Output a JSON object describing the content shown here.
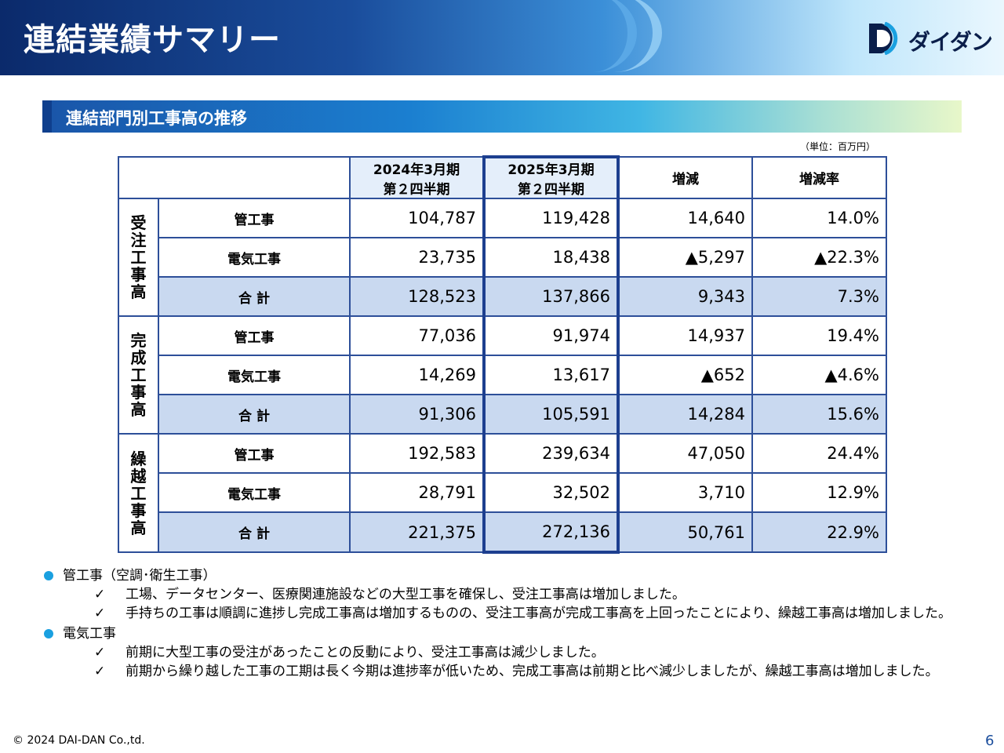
{
  "header": {
    "title": "連結業績サマリー",
    "logo_text": "ダイダン"
  },
  "section": {
    "title": "連結部門別工事高の推移",
    "unit_note": "（単位：百万円）"
  },
  "table": {
    "columns": {
      "prev_line1": "2024年3月期",
      "prev_line2": "第２四半期",
      "cur_line1": "2025年3月期",
      "cur_line2": "第２四半期",
      "change": "増減",
      "change_rate": "増減率"
    },
    "groups": [
      {
        "label_chars": [
          "受",
          "注",
          "工",
          "事",
          "高"
        ],
        "rows": [
          {
            "label": "管工事",
            "prev": "104,787",
            "cur": "119,428",
            "change": "14,640",
            "rate": "14.0%"
          },
          {
            "label": "電気工事",
            "prev": "23,735",
            "cur": "18,438",
            "change": "▲5,297",
            "rate": "▲22.3%"
          },
          {
            "label": "合 計",
            "prev": "128,523",
            "cur": "137,866",
            "change": "9,343",
            "rate": "7.3%"
          }
        ]
      },
      {
        "label_chars": [
          "完",
          "成",
          "工",
          "事",
          "高"
        ],
        "rows": [
          {
            "label": "管工事",
            "prev": "77,036",
            "cur": "91,974",
            "change": "14,937",
            "rate": "19.4%"
          },
          {
            "label": "電気工事",
            "prev": "14,269",
            "cur": "13,617",
            "change": "▲652",
            "rate": "▲4.6%"
          },
          {
            "label": "合 計",
            "prev": "91,306",
            "cur": "105,591",
            "change": "14,284",
            "rate": "15.6%"
          }
        ]
      },
      {
        "label_chars": [
          "繰",
          "越",
          "工",
          "事",
          "高"
        ],
        "rows": [
          {
            "label": "管工事",
            "prev": "192,583",
            "cur": "239,634",
            "change": "47,050",
            "rate": "24.4%"
          },
          {
            "label": "電気工事",
            "prev": "28,791",
            "cur": "32,502",
            "change": "3,710",
            "rate": "12.9%"
          },
          {
            "label": "合 計",
            "prev": "221,375",
            "cur": "272,136",
            "change": "50,761",
            "rate": "22.9%"
          }
        ]
      }
    ]
  },
  "notes": {
    "pipe": {
      "title": "管工事（空調･衛生工事）",
      "items": [
        "工場、データセンター、医療関連施設などの大型工事を確保し、受注工事高は増加しました。",
        "手持ちの工事は順調に進捗し完成工事高は増加するものの、受注工事高が完成工事高を上回ったことにより、繰越工事高は増加しました。"
      ]
    },
    "electric": {
      "title": "電気工事",
      "items": [
        "前期に大型工事の受注があったことの反動により、受注工事高は減少しました。",
        "前期から繰り越した工事の工期は長く今期は進捗率が低いため、完成工事高は前期と比べ減少しましたが、繰越工事高は増加しました。"
      ]
    },
    "check_mark": "✓"
  },
  "footer": {
    "copyright": "© 2024 DAI-DAN Co.,td.",
    "page": "6"
  },
  "colors": {
    "accent": "#1d3f8f",
    "total_row": "#c9d9f0",
    "bullet": "#1aa0e0"
  }
}
